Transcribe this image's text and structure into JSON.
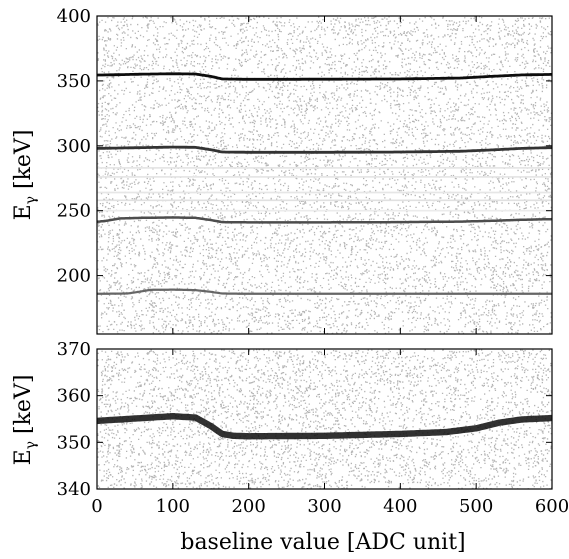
{
  "chart_data": [
    {
      "type": "heatmap",
      "title": "",
      "xlabel": "baseline value [ADC unit]",
      "ylabel": {
        "base": "E",
        "sub": "γ",
        "unit": " [keV]"
      },
      "xlim": [
        0,
        600
      ],
      "ylim": [
        155,
        400
      ],
      "xticks": [
        0,
        100,
        200,
        300,
        400,
        500,
        600
      ],
      "xtick_labels": [
        "",
        "",
        "",
        "",
        "",
        "",
        ""
      ],
      "yticks": [
        200,
        250,
        300,
        350,
        400
      ],
      "ytick_labels": [
        "200",
        "250",
        "300",
        "350",
        "400"
      ],
      "colormap": [
        "#ffffff",
        "#000000"
      ],
      "background_intensity": 0.22,
      "series": [
        {
          "x": [
            0,
            30,
            60,
            100,
            130,
            150,
            165,
            200,
            300,
            400,
            480,
            520,
            560,
            600
          ],
          "y": [
            354.5,
            354.8,
            355.2,
            355.5,
            355.3,
            353.5,
            351.5,
            351.2,
            351.3,
            351.5,
            352.2,
            353.5,
            354.6,
            355.0
          ],
          "intensity": 0.95,
          "width": 2.0
        },
        {
          "x": [
            0,
            30,
            60,
            100,
            130,
            150,
            165,
            200,
            300,
            400,
            480,
            520,
            560,
            600
          ],
          "y": [
            298.0,
            298.3,
            298.6,
            299.0,
            298.8,
            297.0,
            295.2,
            295.0,
            295.0,
            295.2,
            295.8,
            296.8,
            298.0,
            298.6
          ],
          "intensity": 0.8,
          "width": 2.0
        },
        {
          "x": [
            0,
            10,
            30,
            60,
            100,
            130,
            150,
            165,
            200,
            300,
            400,
            480,
            520,
            560,
            600
          ],
          "y": [
            241.5,
            242.0,
            244.0,
            244.5,
            244.8,
            244.5,
            242.8,
            241.2,
            241.0,
            241.0,
            241.2,
            241.6,
            242.2,
            243.0,
            243.5
          ],
          "intensity": 0.7,
          "width": 1.8
        },
        {
          "x": [
            0,
            40,
            55,
            70,
            100,
            130,
            150,
            165,
            200,
            300,
            400,
            480,
            520,
            560,
            600
          ],
          "y": [
            186.0,
            186.2,
            187.5,
            189.0,
            189.2,
            188.8,
            187.5,
            186.2,
            186.0,
            186.0,
            186.0,
            186.0,
            186.0,
            186.0,
            186.0
          ],
          "intensity": 0.6,
          "width": 1.6
        },
        {
          "x": [
            0,
            600
          ],
          "y": [
            258.0,
            258.0
          ],
          "intensity": 0.12,
          "width": 1.2
        },
        {
          "x": [
            0,
            600
          ],
          "y": [
            264.0,
            264.0
          ],
          "intensity": 0.1,
          "width": 1.2
        },
        {
          "x": [
            0,
            600
          ],
          "y": [
            276.0,
            276.0
          ],
          "intensity": 0.1,
          "width": 1.2
        },
        {
          "x": [
            0,
            600
          ],
          "y": [
            283.0,
            283.0
          ],
          "intensity": 0.1,
          "width": 1.2
        },
        {
          "x": [
            0,
            600
          ],
          "y": [
            250.0,
            250.0
          ],
          "intensity": 0.08,
          "width": 1.2
        }
      ]
    },
    {
      "type": "heatmap",
      "title": "",
      "xlabel": "baseline value [ADC unit]",
      "ylabel": {
        "base": "E",
        "sub": "γ",
        "unit": " [keV]"
      },
      "xlim": [
        0,
        600
      ],
      "ylim": [
        340,
        370
      ],
      "xticks": [
        0,
        100,
        200,
        300,
        400,
        500,
        600
      ],
      "xtick_labels": [
        "0",
        "100",
        "200",
        "300",
        "400",
        "500",
        "600"
      ],
      "yticks": [
        340,
        350,
        360,
        370
      ],
      "ytick_labels": [
        "340",
        "350",
        "360",
        "370"
      ],
      "colormap": [
        "#ffffff",
        "#000000"
      ],
      "background_intensity": 0.12,
      "series": [
        {
          "x": [
            0,
            30,
            60,
            100,
            130,
            150,
            165,
            180,
            200,
            300,
            400,
            460,
            500,
            530,
            560,
            600
          ],
          "y": [
            354.6,
            354.9,
            355.2,
            355.6,
            355.3,
            353.5,
            351.8,
            351.4,
            351.3,
            351.4,
            351.8,
            352.2,
            353.0,
            354.2,
            354.9,
            355.2
          ],
          "intensity": 0.95,
          "width": 1.6
        }
      ]
    }
  ]
}
